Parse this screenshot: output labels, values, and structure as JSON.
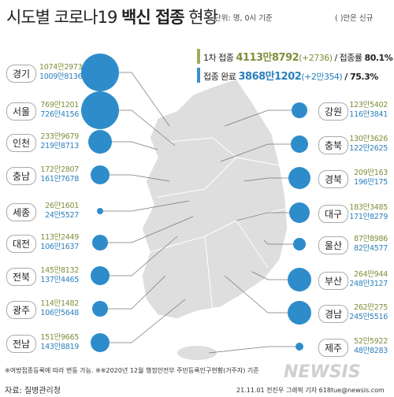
{
  "header": {
    "title_part1": "시도별 코로나19",
    "title_bold": "백신 접종",
    "title_part2": "현황",
    "unit": "단위: 명, 0시 기준",
    "note": "( )안은 신규"
  },
  "summary": {
    "first_label": "1차 접종",
    "first_value": "4113만8792",
    "first_new": "(+2736)",
    "first_rate_label": "/ 접종률",
    "first_rate": "80.1%",
    "done_label": "접종 완료",
    "done_value": "3868만1202",
    "done_new": "(+2만354)",
    "done_rate": "/ 75.3%"
  },
  "regions_left": [
    {
      "name": "경기",
      "first": "1074만2973",
      "done": "1009만8136"
    },
    {
      "name": "서울",
      "first": "769만1201",
      "done": "726만4156"
    },
    {
      "name": "인천",
      "first": "233만9679",
      "done": "219만8713"
    },
    {
      "name": "충남",
      "first": "172만2807",
      "done": "161만7678"
    },
    {
      "name": "세종",
      "first": "26만1601",
      "done": "24만5527"
    },
    {
      "name": "대전",
      "first": "113만2449",
      "done": "106만1637"
    },
    {
      "name": "전북",
      "first": "145만8132",
      "done": "137만4465"
    },
    {
      "name": "광주",
      "first": "114만1482",
      "done": "106만5648"
    },
    {
      "name": "전남",
      "first": "151만9665",
      "done": "143만8819"
    }
  ],
  "regions_right": [
    {
      "name": "강원",
      "first": "123만5402",
      "done": "116만3841"
    },
    {
      "name": "충북",
      "first": "130만3626",
      "done": "122만2625"
    },
    {
      "name": "경북",
      "first": "209만163",
      "done": "196만175"
    },
    {
      "name": "대구",
      "first": "183만3485",
      "done": "171만8279"
    },
    {
      "name": "울산",
      "first": "87만8986",
      "done": "82만4577"
    },
    {
      "name": "부산",
      "first": "264만944",
      "done": "248만3127"
    },
    {
      "name": "경남",
      "first": "262만275",
      "done": "245만5516"
    },
    {
      "name": "제주",
      "first": "52만5922",
      "done": "48만8283"
    }
  ],
  "footer": {
    "note": "※여방접종등록에 따라 변동 가능. ※※2020년 12월 행정안전부 주민등록인구현황(거주자) 기준",
    "source": "자료: 질병관리청",
    "credit": "21.11.01 전진우 그래픽 기자 618tue@newsis.com",
    "logo": "NEWSIS"
  }
}
